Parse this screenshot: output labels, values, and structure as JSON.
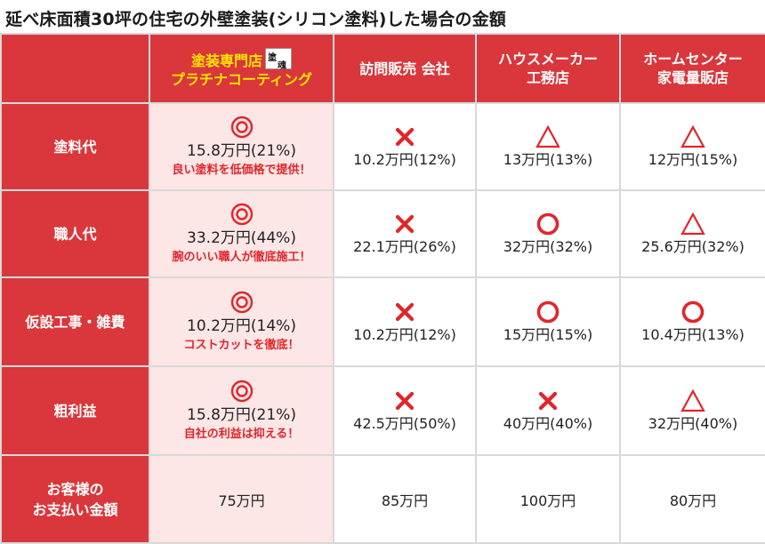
{
  "title": "延べ床面積30坪の住宅の外壁塗装(シリコン塗料)した場合の金額",
  "header": {
    "featured_line1": "塗装専門店",
    "featured_line2": "プラチナコーティング",
    "logo_icon": "brand-logo-kanji",
    "col2": "訪問販売 会社",
    "col3_line1": "ハウスメーカー",
    "col3_line2": "工務店",
    "col4_line1": "ホームセンター",
    "col4_line2": "家電量販店"
  },
  "rows": [
    {
      "label": "塗料代",
      "featured": {
        "symbol": "double-circle",
        "value": "15.8万円(21%)",
        "note": "良い塗料を低価格で提供！"
      },
      "col2": {
        "symbol": "cross",
        "value": "10.2万円(12%)"
      },
      "col3": {
        "symbol": "triangle",
        "value": "13万円(13%)"
      },
      "col4": {
        "symbol": "triangle",
        "value": "12万円(15%)"
      }
    },
    {
      "label": "職人代",
      "featured": {
        "symbol": "double-circle",
        "value": "33.2万円(44%)",
        "note": "腕のいい職人が徹底施工！"
      },
      "col2": {
        "symbol": "cross",
        "value": "22.1万円(26%)"
      },
      "col3": {
        "symbol": "circle",
        "value": "32万円(32%)"
      },
      "col4": {
        "symbol": "triangle",
        "value": "25.6万円(32%)"
      }
    },
    {
      "label": "仮設工事・雑費",
      "featured": {
        "symbol": "double-circle",
        "value": "10.2万円(14%)",
        "note": "コストカットを徹底！"
      },
      "col2": {
        "symbol": "cross",
        "value": "10.2万円(12%)"
      },
      "col3": {
        "symbol": "circle",
        "value": "15万円(15%)"
      },
      "col4": {
        "symbol": "circle",
        "value": "10.4万円(13%)"
      }
    },
    {
      "label": "粗利益",
      "featured": {
        "symbol": "double-circle",
        "value": "15.8万円(21%)",
        "note": "自社の利益は抑える！"
      },
      "col2": {
        "symbol": "cross",
        "value": "42.5万円(50%)"
      },
      "col3": {
        "symbol": "cross",
        "value": "40万円(40%)"
      },
      "col4": {
        "symbol": "triangle",
        "value": "32万円(40%)"
      }
    }
  ],
  "total": {
    "label_line1": "お客様の",
    "label_line2": "お支払い金額",
    "featured": "75万円",
    "col2": "85万円",
    "col3": "100万円",
    "col4": "80万円"
  },
  "colors": {
    "header_red": "#d9373b",
    "featured_bg": "#fde6e6",
    "symbol_red": "#e0262b",
    "featured_text_yellow": "#ffe600"
  }
}
